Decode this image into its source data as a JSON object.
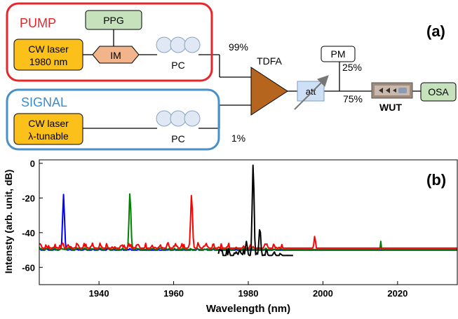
{
  "diagram": {
    "panel_label": "(a)",
    "pump": {
      "title": "PUMP",
      "laser_line1": "CW laser",
      "laser_line2": "1980 nm",
      "ppg": "PPG",
      "modulator": "IM",
      "pc": "PC",
      "split": "99%"
    },
    "signal": {
      "title": "SIGNAL",
      "laser_line1": "CW laser",
      "laser_line2": "λ-tunable",
      "pc": "PC",
      "split": "1%"
    },
    "amplifier": "TDFA",
    "attenuator": "att",
    "power_meter": "PM",
    "coupler_top": "25%",
    "coupler_bottom": "75%",
    "device": "WUT",
    "analyzer": "OSA",
    "colors": {
      "pump_border": "#e8262a",
      "signal_border": "#4a90c8",
      "laser_fill": "#fcc01b",
      "ppg_fill": "#c6e2bd",
      "im_fill": "#f2b48a",
      "tdfa_fill": "#b5651d",
      "att_fill": "#cde0f5",
      "osa_fill": "#c6e2bd"
    }
  },
  "chart_data": {
    "type": "line",
    "panel_label": "(b)",
    "xlabel": "Wavelength (nm)",
    "ylabel": "Intensty (arb. unit, dB)",
    "xlim": [
      1924,
      2036
    ],
    "ylim": [
      -70,
      2
    ],
    "xticks": [
      1940,
      1960,
      1980,
      2000,
      2020
    ],
    "yticks": [
      0,
      -20,
      -40,
      -60
    ],
    "series": [
      {
        "color": "#0000ff",
        "peaks": [
          [
            1930.5,
            -18
          ],
          [
            2033.8,
            -55
          ]
        ]
      },
      {
        "color": "#008000",
        "peaks": [
          [
            1948.3,
            -17
          ],
          [
            2015.5,
            -45
          ]
        ]
      },
      {
        "color": "#ff0000",
        "peaks": [
          [
            1964.8,
            -18
          ],
          [
            1997.8,
            -42
          ]
        ]
      },
      {
        "color": "#000000",
        "peaks": [
          [
            1981.3,
            0
          ],
          [
            1979.5,
            -45
          ],
          [
            1983.1,
            -37
          ],
          [
            1977.7,
            -50
          ],
          [
            1984.9,
            -50
          ]
        ]
      }
    ]
  }
}
